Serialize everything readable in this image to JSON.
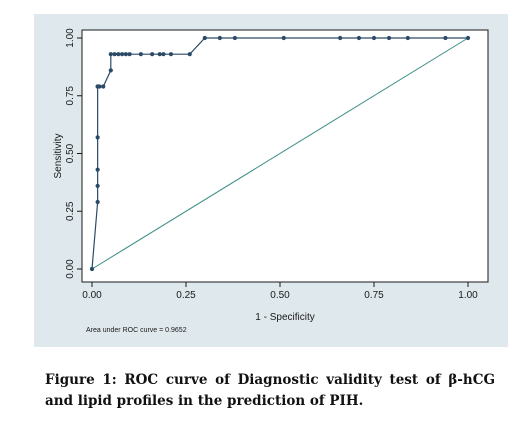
{
  "chart_data": {
    "type": "line",
    "xlabel": "1 - Specificity",
    "ylabel": "Sensitivity",
    "xlim": [
      0,
      1
    ],
    "ylim": [
      0,
      1
    ],
    "x_ticks": [
      "0.00",
      "0.25",
      "0.50",
      "0.75",
      "1.00"
    ],
    "y_ticks": [
      "0.00",
      "0.25",
      "0.50",
      "0.75",
      "1.00"
    ],
    "grid": false,
    "legend": "none",
    "annotation": "Area under ROC curve = 0.9652",
    "series": [
      {
        "x": [
          0.0,
          0.015,
          0.015,
          0.015,
          0.015,
          0.015,
          0.015,
          0.02,
          0.03,
          0.05,
          0.05,
          0.06,
          0.07,
          0.08,
          0.09,
          0.1,
          0.13,
          0.16,
          0.18,
          0.19,
          0.21,
          0.26,
          0.3,
          0.34,
          0.38,
          0.51,
          0.66,
          0.71,
          0.75,
          0.79,
          0.84,
          0.94,
          1.0
        ],
        "y": [
          0.0,
          0.29,
          0.36,
          0.43,
          0.57,
          0.79,
          0.79,
          0.79,
          0.79,
          0.86,
          0.93,
          0.93,
          0.93,
          0.93,
          0.93,
          0.93,
          0.93,
          0.93,
          0.93,
          0.93,
          0.93,
          0.93,
          1.0,
          1.0,
          1.0,
          1.0,
          1.0,
          1.0,
          1.0,
          1.0,
          1.0,
          1.0,
          1.0
        ]
      },
      {
        "x": [
          0,
          1
        ],
        "y": [
          0,
          1
        ]
      }
    ]
  },
  "colors": {
    "roc_line": "#2b4a68",
    "reference_line": "#3a8d85",
    "panel_background": "#dfe8ec"
  },
  "caption": "Figure 1: ROC curve of Diagnostic validity test of β-hCG and lipid profiles in the prediction of PIH."
}
